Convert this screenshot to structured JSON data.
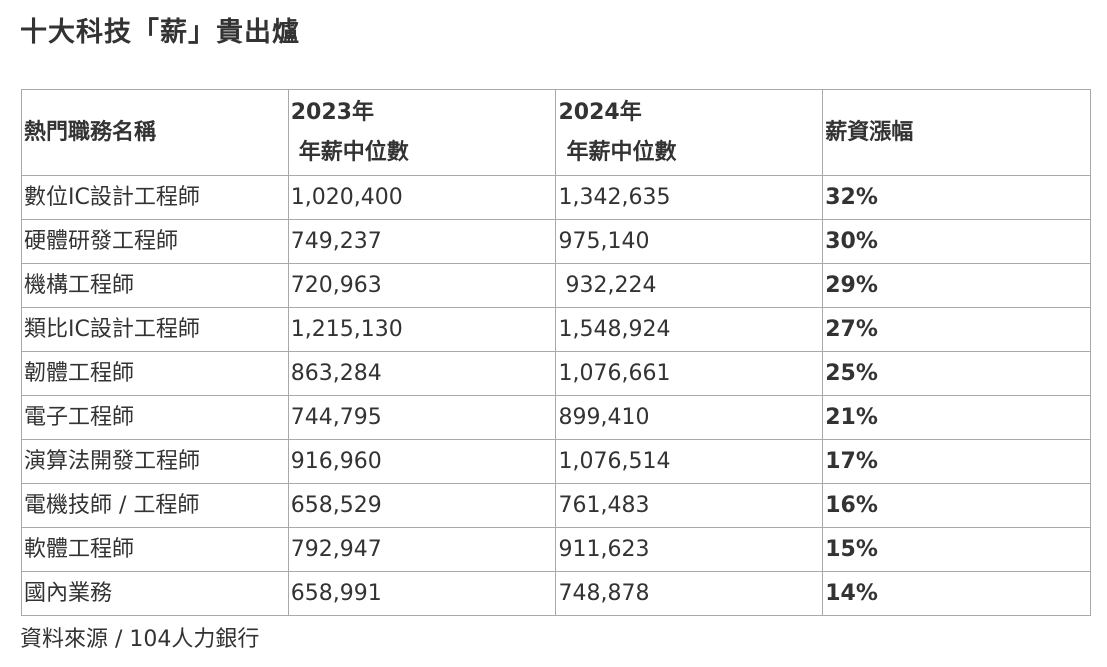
{
  "title": "十大科技「薪」貴出爐",
  "table": {
    "headers": {
      "job": "熱門職務名稱",
      "y2023_line1": "2023年",
      "y2023_line2": "年薪中位數",
      "y2024_line1": "2024年",
      "y2024_line2": "年薪中位數",
      "raise": "薪資漲幅"
    },
    "rows": [
      {
        "job": "數位IC設計工程師",
        "y2023": "1,020,400",
        "y2024": "1,342,635",
        "raise": "32%"
      },
      {
        "job": "硬體研發工程師",
        "y2023": "749,237",
        "y2024": "975,140",
        "raise": "30%"
      },
      {
        "job": "機構工程師",
        "y2023": "720,963",
        "y2024": " 932,224",
        "raise": "29%"
      },
      {
        "job": "類比IC設計工程師",
        "y2023": "1,215,130",
        "y2024": "1,548,924",
        "raise": "27%"
      },
      {
        "job": "韌體工程師",
        "y2023": "863,284",
        "y2024": "1,076,661",
        "raise": "25%"
      },
      {
        "job": "電子工程師",
        "y2023": "744,795",
        "y2024": "899,410",
        "raise": "21%"
      },
      {
        "job": "演算法開發工程師",
        "y2023": "916,960",
        "y2024": "1,076,514",
        "raise": "17%"
      },
      {
        "job": "電機技師 / 工程師",
        "y2023": "658,529",
        "y2024": "761,483",
        "raise": "16%"
      },
      {
        "job": "軟體工程師",
        "y2023": "792,947",
        "y2024": "911,623",
        "raise": "15%"
      },
      {
        "job": "國內業務",
        "y2023": "658,991",
        "y2024": "748,878",
        "raise": "14%"
      }
    ]
  },
  "source": "資料來源 / 104人力銀行"
}
